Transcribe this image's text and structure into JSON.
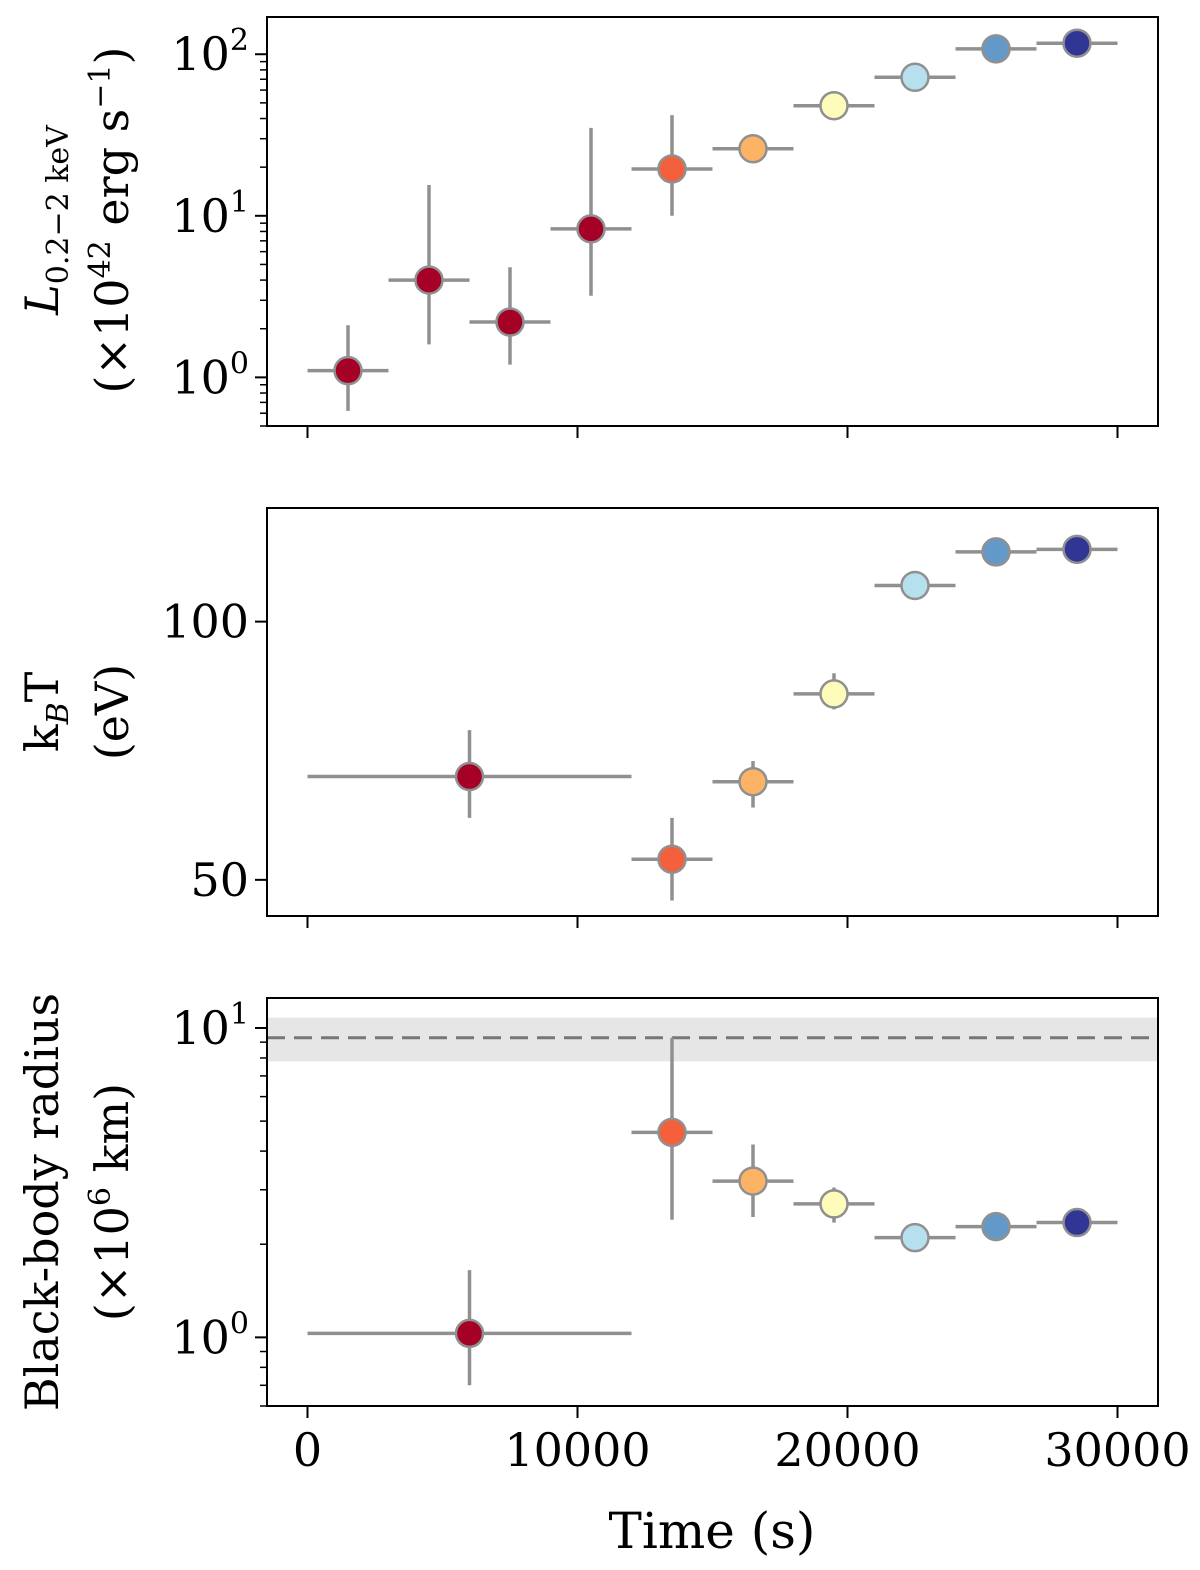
{
  "chart_data": [
    {
      "type": "scatter",
      "panel": "luminosity",
      "ylabel_main": "L",
      "ylabel_sub": "0.2−2 keV",
      "ylabel_line2_prefix": "(×10",
      "ylabel_line2_exp": "42",
      "ylabel_line2_mid": " erg s",
      "ylabel_line2_exp2": "−1",
      "ylabel_line2_suffix": ")",
      "yscale": "log",
      "ylim": [
        0.5,
        170
      ],
      "yticks": [
        {
          "value": 1,
          "base": "10",
          "exp": "0"
        },
        {
          "value": 10,
          "base": "10",
          "exp": "1"
        },
        {
          "value": 100,
          "base": "10",
          "exp": "2"
        }
      ],
      "points": [
        {
          "x": 1500,
          "xerr": 1500,
          "y": 1.1,
          "ylo": 0.62,
          "yhi": 2.1,
          "color": "#a50026"
        },
        {
          "x": 4500,
          "xerr": 1500,
          "y": 4.0,
          "ylo": 1.6,
          "yhi": 15.5,
          "color": "#a50026"
        },
        {
          "x": 7500,
          "xerr": 1500,
          "y": 2.2,
          "ylo": 1.2,
          "yhi": 4.8,
          "color": "#a50026"
        },
        {
          "x": 10500,
          "xerr": 1500,
          "y": 8.3,
          "ylo": 3.2,
          "yhi": 35,
          "color": "#a50026"
        },
        {
          "x": 13500,
          "xerr": 1500,
          "y": 19.5,
          "ylo": 10,
          "yhi": 42,
          "color": "#f4603c"
        },
        {
          "x": 16500,
          "xerr": 1500,
          "y": 26,
          "ylo": 23,
          "yhi": 32,
          "color": "#fdb366"
        },
        {
          "x": 19500,
          "xerr": 1500,
          "y": 48,
          "ylo": 45,
          "yhi": 52,
          "color": "#fefcbb"
        },
        {
          "x": 22500,
          "xerr": 1500,
          "y": 72,
          "ylo": 68,
          "yhi": 76,
          "color": "#b7e0ee"
        },
        {
          "x": 25500,
          "xerr": 1500,
          "y": 108,
          "ylo": 104,
          "yhi": 112,
          "color": "#6399c9"
        },
        {
          "x": 28500,
          "xerr": 1500,
          "y": 117,
          "ylo": 113,
          "yhi": 121,
          "color": "#313695"
        }
      ]
    },
    {
      "type": "scatter",
      "panel": "temperature",
      "ylabel_main": "k",
      "ylabel_sub": "B",
      "ylabel_main2": "T",
      "ylabel_line2": "(eV)",
      "yscale": "linear",
      "ylim": [
        43,
        122
      ],
      "yticks": [
        {
          "value": 50,
          "label": "50"
        },
        {
          "value": 100,
          "label": "100"
        }
      ],
      "points": [
        {
          "x": 6000,
          "xerr": 6000,
          "y": 70,
          "ylo": 62,
          "yhi": 79,
          "color": "#a50026"
        },
        {
          "x": 13500,
          "xerr": 1500,
          "y": 54,
          "ylo": 46,
          "yhi": 62,
          "color": "#f4603c"
        },
        {
          "x": 16500,
          "xerr": 1500,
          "y": 69,
          "ylo": 64,
          "yhi": 73,
          "color": "#fdb366"
        },
        {
          "x": 19500,
          "xerr": 1500,
          "y": 86,
          "ylo": 83,
          "yhi": 90,
          "color": "#fefcbb"
        },
        {
          "x": 22500,
          "xerr": 1500,
          "y": 107,
          "ylo": 105,
          "yhi": 109,
          "color": "#b7e0ee"
        },
        {
          "x": 25500,
          "xerr": 1500,
          "y": 113.5,
          "ylo": 112,
          "yhi": 115,
          "color": "#6399c9"
        },
        {
          "x": 28500,
          "xerr": 1500,
          "y": 114,
          "ylo": 113,
          "yhi": 115,
          "color": "#313695"
        }
      ]
    },
    {
      "type": "scatter",
      "panel": "radius",
      "ylabel_line1": "Black-body radius",
      "ylabel_line2_prefix": "(×10",
      "ylabel_line2_exp": "6",
      "ylabel_line2_suffix": " km)",
      "yscale": "log",
      "ylim": [
        0.6,
        12.5
      ],
      "yticks": [
        {
          "value": 1,
          "base": "10",
          "exp": "0"
        },
        {
          "value": 10,
          "base": "10",
          "exp": "1"
        }
      ],
      "reference_line": {
        "y": 9.3,
        "band_lo": 7.8,
        "band_hi": 10.8,
        "style": "dashed",
        "color": "#777777",
        "band_color": "#e6e6e6"
      },
      "points": [
        {
          "x": 6000,
          "xerr": 6000,
          "y": 1.03,
          "ylo": 0.7,
          "yhi": 1.65,
          "color": "#a50026"
        },
        {
          "x": 13500,
          "xerr": 1500,
          "y": 4.6,
          "ylo": 2.4,
          "yhi": 9.3,
          "color": "#f4603c"
        },
        {
          "x": 16500,
          "xerr": 1500,
          "y": 3.2,
          "ylo": 2.45,
          "yhi": 4.2,
          "color": "#fdb366"
        },
        {
          "x": 19500,
          "xerr": 1500,
          "y": 2.7,
          "ylo": 2.35,
          "yhi": 3.05,
          "color": "#fefcbb"
        },
        {
          "x": 22500,
          "xerr": 1500,
          "y": 2.1,
          "ylo": 2.0,
          "yhi": 2.2,
          "color": "#b7e0ee"
        },
        {
          "x": 25500,
          "xerr": 1500,
          "y": 2.28,
          "ylo": 2.2,
          "yhi": 2.36,
          "color": "#6399c9"
        },
        {
          "x": 28500,
          "xerr": 1500,
          "y": 2.35,
          "ylo": 2.27,
          "yhi": 2.43,
          "color": "#313695"
        }
      ]
    }
  ],
  "xaxis": {
    "label": "Time (s)",
    "xlim": [
      -1500,
      31500
    ],
    "ticks": [
      {
        "value": 0,
        "label": "0"
      },
      {
        "value": 10000,
        "label": "10000"
      },
      {
        "value": 20000,
        "label": "20000"
      },
      {
        "value": 30000,
        "label": "30000"
      }
    ]
  },
  "style": {
    "errorbar_color": "#909090",
    "marker_edge_color": "#909090",
    "axis_color": "#000000"
  }
}
